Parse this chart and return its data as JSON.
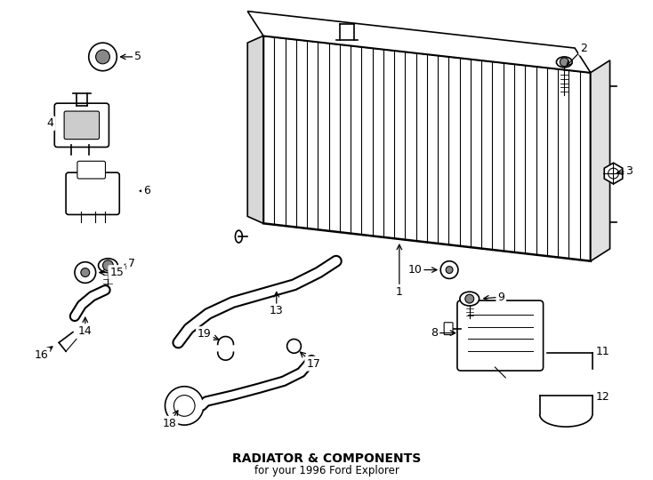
{
  "title": "RADIATOR & COMPONENTS",
  "subtitle": "for your 1996 Ford Explorer",
  "bg_color": "#ffffff",
  "line_color": "#000000",
  "title_fontsize": 10,
  "subtitle_fontsize": 8.5,
  "fig_width": 7.34,
  "fig_height": 5.4
}
